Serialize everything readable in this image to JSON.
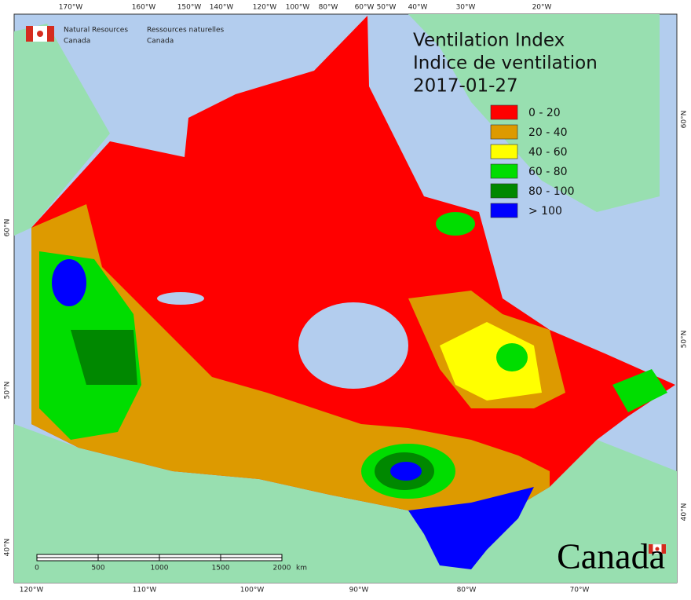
{
  "header": {
    "org_en": [
      "Natural Resources",
      "Canada"
    ],
    "org_fr": [
      "Ressources naturelles",
      "Canada"
    ]
  },
  "title": [
    "Ventilation Index",
    "Indice de ventilation",
    "2017-01-27"
  ],
  "legend": [
    {
      "label": "0 - 20",
      "color": "#ff0000"
    },
    {
      "label": "20 - 40",
      "color": "#dd9a00"
    },
    {
      "label": "40 - 60",
      "color": "#ffff00"
    },
    {
      "label": "60 - 80",
      "color": "#00dd00"
    },
    {
      "label": "80 - 100",
      "color": "#008800"
    },
    {
      "label": "> 100",
      "color": "#0000ff"
    }
  ],
  "top_labels": [
    "170°W",
    "160°W",
    "150°W",
    "140°W",
    "120°W",
    "100°W",
    "80°W",
    "60°W",
    "50°W",
    "40°W",
    "30°W",
    "20°W"
  ],
  "bottom_labels": [
    "120°W",
    "110°W",
    "100°W",
    "90°W",
    "80°W",
    "70°W"
  ],
  "left_labels": [
    "60°N",
    "50°N",
    "40°N"
  ],
  "right_labels": [
    "60°N",
    "50°N",
    "40°N"
  ],
  "scale_bar": {
    "ticks": [
      "0",
      "500",
      "1000",
      "1500",
      "2000"
    ],
    "unit": "km"
  },
  "wordmark": "Canada"
}
